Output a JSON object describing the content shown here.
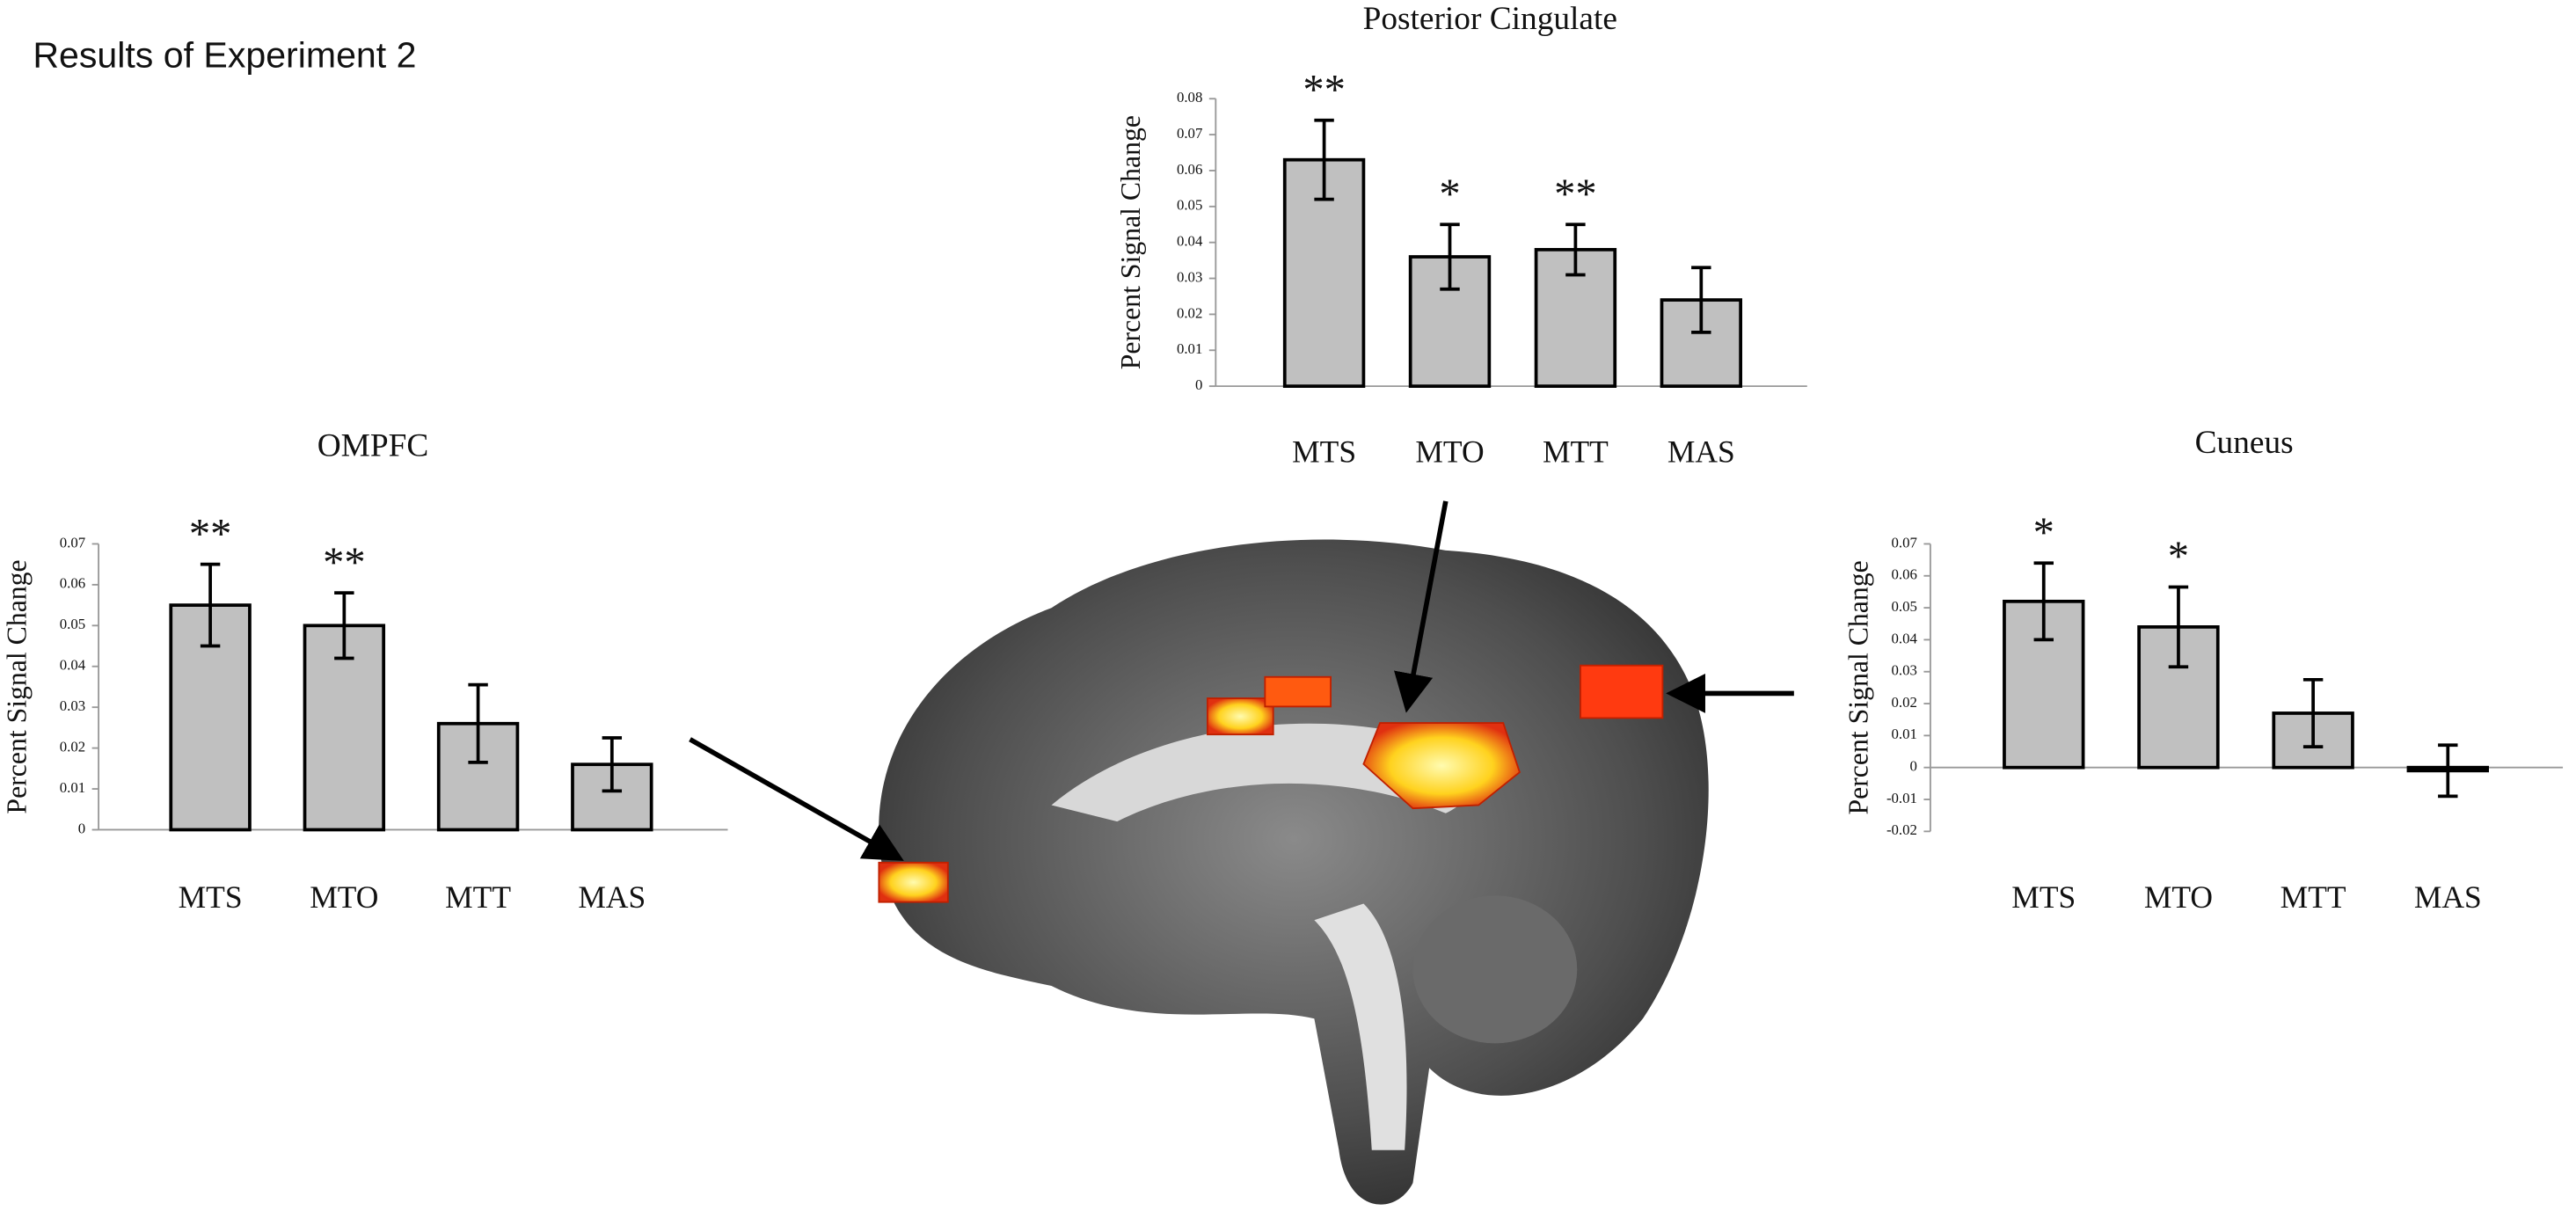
{
  "figure_title": "Results of Experiment 2",
  "chart_data": [
    {
      "type": "bar",
      "title": "Posterior Cingulate",
      "ylabel": "Percent Signal Change",
      "categories": [
        "MTS",
        "MTO",
        "MTT",
        "MAS"
      ],
      "values": [
        0.063,
        0.036,
        0.038,
        0.024
      ],
      "errors": [
        0.011,
        0.009,
        0.007,
        0.009
      ],
      "annotations": [
        "**",
        "*",
        "**",
        null
      ],
      "color": "#c0c0c0",
      "ylim": [
        0,
        0.08
      ],
      "yticks": [
        0,
        0.01,
        0.02,
        0.03,
        0.04,
        0.05,
        0.06,
        0.07,
        0.08
      ]
    },
    {
      "type": "bar",
      "title": "OMPFC",
      "ylabel": "Percent Signal Change",
      "categories": [
        "MTS",
        "MTO",
        "MTT",
        "MAS"
      ],
      "values": [
        0.055,
        0.05,
        0.026,
        0.016
      ],
      "errors": [
        0.01,
        0.008,
        0.0095,
        0.0065
      ],
      "annotations": [
        "**",
        "**",
        null,
        null
      ],
      "color": "#c0c0c0",
      "ylim": [
        0,
        0.07
      ],
      "yticks": [
        0,
        0.01,
        0.02,
        0.03,
        0.04,
        0.05,
        0.06,
        0.07
      ]
    },
    {
      "type": "bar",
      "title": "Cuneus",
      "ylabel": "Percent Signal Change",
      "categories": [
        "MTS",
        "MTO",
        "MTT",
        "MAS"
      ],
      "values": [
        0.052,
        0.044,
        0.017,
        -0.001
      ],
      "errors": [
        0.012,
        0.0125,
        0.0105,
        0.008
      ],
      "annotations": [
        "*",
        "*",
        null,
        null
      ],
      "color": "#c0c0c0",
      "ylim": [
        -0.02,
        0.07
      ],
      "yticks": [
        -0.02,
        -0.01,
        0,
        0.01,
        0.02,
        0.03,
        0.04,
        0.05,
        0.06,
        0.07
      ]
    }
  ]
}
